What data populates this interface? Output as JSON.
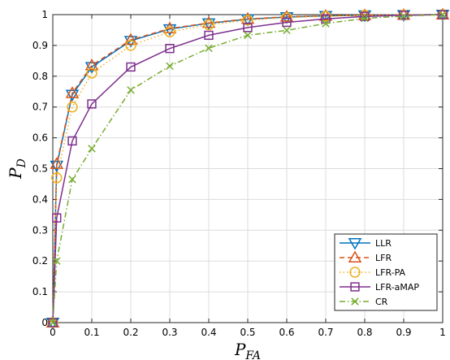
{
  "chart_data": {
    "type": "line",
    "title": "",
    "xlabel": "P",
    "xlabel_sub": "FA",
    "ylabel": "P",
    "ylabel_sub": "D",
    "xlim": [
      0,
      1
    ],
    "ylim": [
      0,
      1
    ],
    "grid": true,
    "legend_position": "bottom-right",
    "x_ticks": [
      "0",
      "0.1",
      "0.2",
      "0.3",
      "0.4",
      "0.5",
      "0.6",
      "0.7",
      "0.8",
      "0.9",
      "1"
    ],
    "y_ticks": [
      "0",
      "0.1",
      "0.2",
      "0.3",
      "0.4",
      "0.5",
      "0.6",
      "0.7",
      "0.8",
      "0.9",
      "1"
    ],
    "x": [
      0,
      0.01,
      0.05,
      0.1,
      0.2,
      0.3,
      0.4,
      0.5,
      0.6,
      0.7,
      0.8,
      0.9,
      1.0
    ],
    "series": [
      {
        "name": "LLR",
        "color": "#0072BD",
        "marker": "triangle-down",
        "dash": "solid",
        "values": [
          0,
          0.51,
          0.74,
          0.83,
          0.915,
          0.953,
          0.972,
          0.985,
          0.992,
          0.996,
          0.998,
          0.999,
          1.0
        ]
      },
      {
        "name": "LFR",
        "color": "#D95319",
        "marker": "triangle-up",
        "dash": "dashed",
        "values": [
          0,
          0.515,
          0.745,
          0.835,
          0.918,
          0.955,
          0.973,
          0.986,
          0.993,
          0.996,
          0.998,
          0.999,
          1.0
        ]
      },
      {
        "name": "LFR-PA",
        "color": "#EDB120",
        "marker": "circle",
        "dash": "dotted",
        "values": [
          0,
          0.47,
          0.7,
          0.81,
          0.9,
          0.944,
          0.967,
          0.982,
          0.99,
          0.995,
          0.998,
          0.999,
          1.0
        ]
      },
      {
        "name": "LFR-aMAP",
        "color": "#7E2F8E",
        "marker": "square",
        "dash": "solid",
        "values": [
          0,
          0.34,
          0.59,
          0.71,
          0.83,
          0.89,
          0.933,
          0.958,
          0.975,
          0.986,
          0.994,
          0.998,
          1.0
        ]
      },
      {
        "name": "CR",
        "color": "#77AC30",
        "marker": "x",
        "dash": "dashdot",
        "values": [
          0,
          0.2,
          0.465,
          0.565,
          0.755,
          0.833,
          0.891,
          0.933,
          0.949,
          0.971,
          0.988,
          0.995,
          1.0
        ]
      }
    ]
  }
}
